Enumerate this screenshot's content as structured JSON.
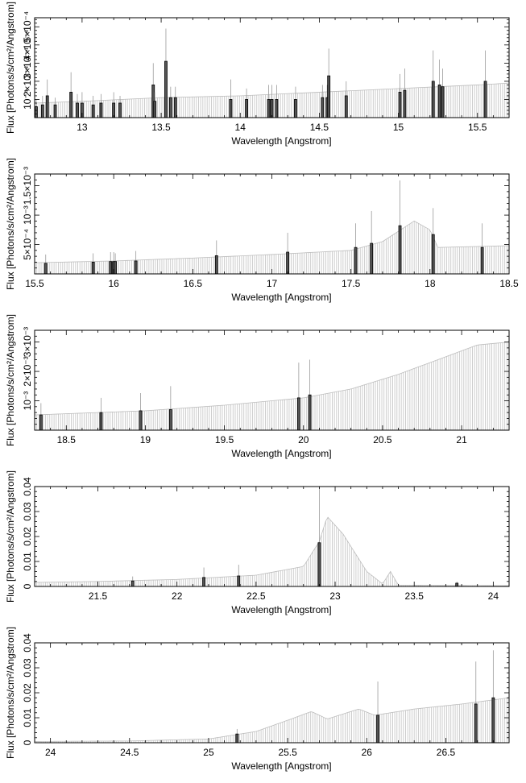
{
  "chart_data": [
    {
      "type": "bar",
      "xlabel": "Wavelength [Angstrom]",
      "ylabel": "Flux [Photons/s/cm²/Angstrom]",
      "xlim": [
        12.7,
        15.7
      ],
      "ylim": [
        0,
        0.00055
      ],
      "xticks": [
        13,
        13.5,
        14,
        14.5,
        15,
        15.5
      ],
      "xtick_labels": [
        "13",
        "13.5",
        "14",
        "14.5",
        "15",
        "15.5"
      ],
      "yticks": [
        0.0001,
        0.0002,
        0.0003,
        0.0004,
        0.0005
      ],
      "ytick_labels": [
        "10⁻⁴",
        "2×10⁻⁴",
        "3×10⁻⁴",
        "4×10⁻⁴",
        "5×10⁻⁴"
      ],
      "continuum": [
        [
          12.7,
          8e-05
        ],
        [
          13.0,
          9e-05
        ],
        [
          13.5,
          0.00011
        ],
        [
          14.0,
          0.00012
        ],
        [
          14.5,
          0.00014
        ],
        [
          15.0,
          0.00016
        ],
        [
          15.5,
          0.00018
        ],
        [
          15.7,
          0.00019
        ]
      ],
      "lines": [
        {
          "x": 12.71,
          "y": 6e-05,
          "err": 4e-05
        },
        {
          "x": 12.75,
          "y": 7e-05,
          "err": 5e-05
        },
        {
          "x": 12.78,
          "y": 0.00012,
          "err": 9e-05
        },
        {
          "x": 12.83,
          "y": 7e-05,
          "err": 4e-05
        },
        {
          "x": 12.93,
          "y": 0.00014,
          "err": 0.00011
        },
        {
          "x": 12.97,
          "y": 8e-05,
          "err": 5e-05
        },
        {
          "x": 13.0,
          "y": 8e-05,
          "err": 6e-05
        },
        {
          "x": 13.07,
          "y": 7e-05,
          "err": 5e-05
        },
        {
          "x": 13.12,
          "y": 8e-05,
          "err": 5e-05
        },
        {
          "x": 13.2,
          "y": 8e-05,
          "err": 6e-05
        },
        {
          "x": 13.24,
          "y": 8e-05,
          "err": 4e-05
        },
        {
          "x": 13.45,
          "y": 0.00018,
          "err": 0.00012
        },
        {
          "x": 13.46,
          "y": 9e-05,
          "err": 5e-05
        },
        {
          "x": 13.53,
          "y": 0.00031,
          "err": 0.00018
        },
        {
          "x": 13.56,
          "y": 0.00011,
          "err": 6e-05
        },
        {
          "x": 13.59,
          "y": 0.00011,
          "err": 6e-05
        },
        {
          "x": 13.94,
          "y": 0.0001,
          "err": 0.00011
        },
        {
          "x": 14.04,
          "y": 0.0001,
          "err": 6e-05
        },
        {
          "x": 14.18,
          "y": 0.0001,
          "err": 8e-05
        },
        {
          "x": 14.2,
          "y": 0.0001,
          "err": 8e-05
        },
        {
          "x": 14.23,
          "y": 0.0001,
          "err": 8e-05
        },
        {
          "x": 14.35,
          "y": 0.0001,
          "err": 7e-05
        },
        {
          "x": 14.52,
          "y": 0.00011,
          "err": 7e-05
        },
        {
          "x": 14.55,
          "y": 0.00011,
          "err": 7e-05
        },
        {
          "x": 14.56,
          "y": 0.00023,
          "err": 0.00015
        },
        {
          "x": 14.67,
          "y": 0.00012,
          "err": 8e-05
        },
        {
          "x": 15.01,
          "y": 0.00014,
          "err": 0.0001
        },
        {
          "x": 15.04,
          "y": 0.00015,
          "err": 0.00012
        },
        {
          "x": 15.22,
          "y": 0.0002,
          "err": 0.00017
        },
        {
          "x": 15.26,
          "y": 0.00018,
          "err": 0.00014
        },
        {
          "x": 15.28,
          "y": 0.00017,
          "err": 0.0001
        },
        {
          "x": 15.55,
          "y": 0.0002,
          "err": 0.00017
        }
      ]
    },
    {
      "type": "bar",
      "xlabel": "Wavelength [Angstrom]",
      "ylabel": "Flux [Photons/s/cm²/Angstrom]",
      "xlim": [
        15.5,
        18.5
      ],
      "ylim": [
        0,
        0.0017
      ],
      "xticks": [
        15.5,
        16,
        16.5,
        17,
        17.5,
        18,
        18.5
      ],
      "xtick_labels": [
        "15.5",
        "16",
        "16.5",
        "17",
        "17.5",
        "18",
        "18.5"
      ],
      "yticks": [
        0.0005,
        0.001,
        0.0015
      ],
      "ytick_labels": [
        "5×10⁻⁴",
        "10⁻³",
        "1.5×10⁻³"
      ],
      "continuum": [
        [
          15.5,
          0.00019
        ],
        [
          16.0,
          0.00022
        ],
        [
          16.5,
          0.00027
        ],
        [
          17.0,
          0.00033
        ],
        [
          17.5,
          0.0004
        ],
        [
          17.7,
          0.00055
        ],
        [
          17.9,
          0.0009
        ],
        [
          18.0,
          0.00075
        ],
        [
          18.05,
          0.00045
        ],
        [
          18.5,
          0.00048
        ]
      ],
      "lines": [
        {
          "x": 15.57,
          "y": 0.00018,
          "err": 0.00015
        },
        {
          "x": 15.87,
          "y": 0.0002,
          "err": 0.00015
        },
        {
          "x": 15.98,
          "y": 0.00021,
          "err": 0.00016
        },
        {
          "x": 16.0,
          "y": 0.00021,
          "err": 0.00016
        },
        {
          "x": 16.01,
          "y": 0.00021,
          "err": 0.00014
        },
        {
          "x": 16.14,
          "y": 0.00022,
          "err": 0.00017
        },
        {
          "x": 16.65,
          "y": 0.00031,
          "err": 0.00026
        },
        {
          "x": 17.1,
          "y": 0.00037,
          "err": 0.00033
        },
        {
          "x": 17.53,
          "y": 0.00045,
          "err": 0.00041
        },
        {
          "x": 17.63,
          "y": 0.00052,
          "err": 0.00055
        },
        {
          "x": 17.81,
          "y": 0.00082,
          "err": 0.00077
        },
        {
          "x": 18.02,
          "y": 0.00067,
          "err": 0.00045
        },
        {
          "x": 18.33,
          "y": 0.00045,
          "err": 0.00041
        }
      ]
    },
    {
      "type": "bar",
      "xlabel": "Wavelength [Angstrom]",
      "ylabel": "Flux [Photons/s/cm²/Angstrom]",
      "xlim": [
        18.3,
        21.3
      ],
      "ylim": [
        0,
        0.0034
      ],
      "xticks": [
        18.5,
        19,
        19.5,
        20,
        20.5,
        21
      ],
      "xtick_labels": [
        "18.5",
        "19",
        "19.5",
        "20",
        "20.5",
        "21"
      ],
      "yticks": [
        0.001,
        0.002,
        0.003
      ],
      "ytick_labels": [
        "10⁻³",
        "2×10⁻³",
        "3×10⁻³"
      ],
      "continuum": [
        [
          18.3,
          0.00052
        ],
        [
          18.7,
          0.0006
        ],
        [
          19.0,
          0.00066
        ],
        [
          19.5,
          0.00085
        ],
        [
          20.0,
          0.0011
        ],
        [
          20.3,
          0.0014
        ],
        [
          20.6,
          0.0019
        ],
        [
          20.9,
          0.0025
        ],
        [
          21.1,
          0.0029
        ],
        [
          21.3,
          0.003
        ]
      ],
      "lines": [
        {
          "x": 18.34,
          "y": 0.00052,
          "err": 0.0004
        },
        {
          "x": 18.72,
          "y": 0.0006,
          "err": 0.0005
        },
        {
          "x": 18.97,
          "y": 0.00066,
          "err": 0.0006
        },
        {
          "x": 19.16,
          "y": 0.0007,
          "err": 0.0008
        },
        {
          "x": 19.97,
          "y": 0.0011,
          "err": 0.0012
        },
        {
          "x": 20.04,
          "y": 0.0012,
          "err": 0.0012
        }
      ]
    },
    {
      "type": "bar",
      "xlabel": "Wavelength [Angstrom]",
      "ylabel": "Flux [Photons/s/cm²/Angstrom]",
      "xlim": [
        21.1,
        24.1
      ],
      "ylim": [
        0,
        0.04
      ],
      "xticks": [
        21.5,
        22,
        22.5,
        23,
        23.5,
        24
      ],
      "xtick_labels": [
        "21.5",
        "22",
        "22.5",
        "23",
        "23.5",
        "24"
      ],
      "yticks": [
        0,
        0.01,
        0.02,
        0.03,
        0.04
      ],
      "ytick_labels": [
        "0",
        "0.01",
        "0.02",
        "0.03",
        "0.04"
      ],
      "continuum": [
        [
          21.1,
          0.0016
        ],
        [
          21.5,
          0.002
        ],
        [
          22.0,
          0.0028
        ],
        [
          22.5,
          0.0045
        ],
        [
          22.8,
          0.008
        ],
        [
          22.9,
          0.018
        ],
        [
          22.95,
          0.028
        ],
        [
          23.05,
          0.021
        ],
        [
          23.2,
          0.006
        ],
        [
          23.3,
          0.001
        ],
        [
          23.35,
          0.006
        ],
        [
          23.4,
          0.0005
        ],
        [
          24.1,
          0.0003
        ]
      ],
      "lines": [
        {
          "x": 21.72,
          "y": 0.0022,
          "err": 0.0018
        },
        {
          "x": 22.17,
          "y": 0.0036,
          "err": 0.004
        },
        {
          "x": 22.39,
          "y": 0.0042,
          "err": 0.0045
        },
        {
          "x": 22.9,
          "y": 0.0175,
          "err": 0.0235
        },
        {
          "x": 23.77,
          "y": 0.0013,
          "err": 0.0006
        }
      ]
    },
    {
      "type": "bar",
      "xlabel": "Wavelength [Angstrom]",
      "ylabel": "Flux [Photons/s/cm²/Angstrom]",
      "xlim": [
        23.9,
        26.9
      ],
      "ylim": [
        0,
        0.04
      ],
      "xticks": [
        24,
        24.5,
        25,
        25.5,
        26,
        26.5
      ],
      "xtick_labels": [
        "24",
        "24.5",
        "25",
        "25.5",
        "26",
        "26.5"
      ],
      "yticks": [
        0,
        0.01,
        0.02,
        0.03,
        0.04
      ],
      "ytick_labels": [
        "0",
        "0.01",
        "0.02",
        "0.03",
        "0.04"
      ],
      "continuum": [
        [
          23.9,
          0.0005
        ],
        [
          24.5,
          0.0007
        ],
        [
          25.0,
          0.0015
        ],
        [
          25.3,
          0.0045
        ],
        [
          25.5,
          0.009
        ],
        [
          25.65,
          0.0125
        ],
        [
          25.75,
          0.0095
        ],
        [
          25.95,
          0.0135
        ],
        [
          26.05,
          0.011
        ],
        [
          26.3,
          0.0135
        ],
        [
          26.6,
          0.0155
        ],
        [
          26.9,
          0.018
        ]
      ],
      "lines": [
        {
          "x": 25.18,
          "y": 0.0035,
          "err": 0.002
        },
        {
          "x": 26.07,
          "y": 0.011,
          "err": 0.0135
        },
        {
          "x": 26.69,
          "y": 0.0155,
          "err": 0.017
        },
        {
          "x": 26.8,
          "y": 0.018,
          "err": 0.019
        }
      ]
    }
  ]
}
